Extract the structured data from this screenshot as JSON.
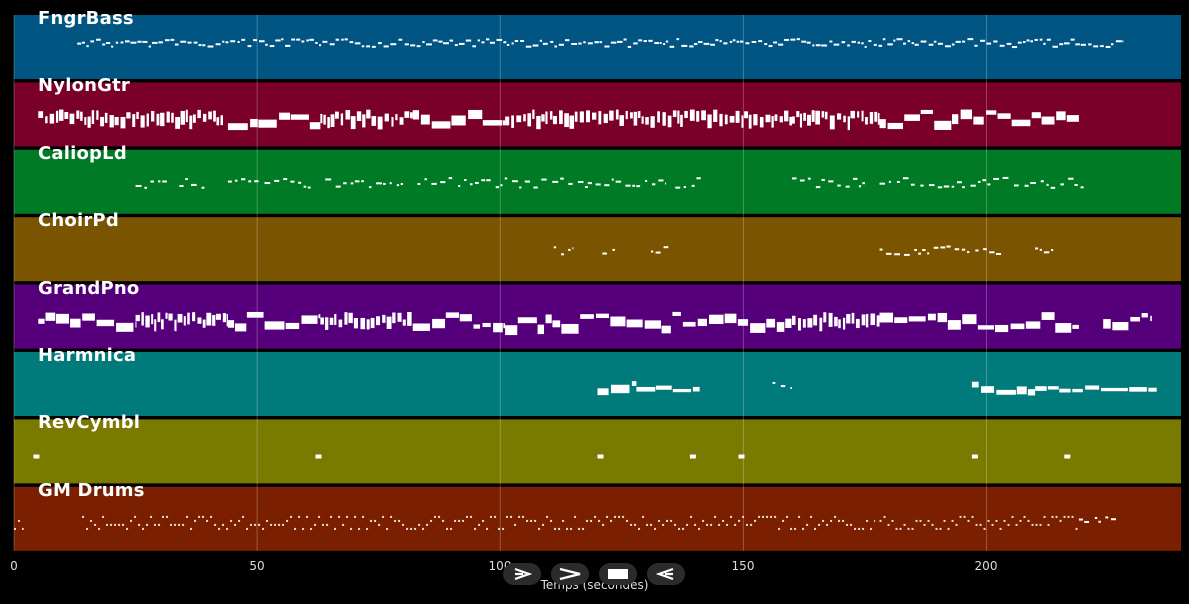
{
  "x_axis": {
    "label": "Temps (secondes)",
    "ticks": [
      "0",
      "50",
      "100",
      "150",
      "200"
    ],
    "range": [
      0,
      240
    ]
  },
  "tracks": [
    {
      "name": "FngrBass",
      "color": "#005582",
      "segments": [
        [
          13,
          228,
          "dense"
        ]
      ]
    },
    {
      "name": "NylonGtr",
      "color": "#7a0029",
      "segments": [
        [
          5,
          43,
          "chord"
        ],
        [
          44,
          63,
          "block"
        ],
        [
          63,
          82,
          "chord"
        ],
        [
          82,
          101,
          "block"
        ],
        [
          101,
          160,
          "chord"
        ],
        [
          160,
          178,
          "chord"
        ],
        [
          178,
          219,
          "block"
        ]
      ]
    },
    {
      "name": "CaliopLd",
      "color": "#007a25",
      "segments": [
        [
          25,
          32,
          "sparse"
        ],
        [
          34,
          40,
          "sparse"
        ],
        [
          44,
          61,
          "sparse"
        ],
        [
          64,
          72,
          "sparse"
        ],
        [
          73,
          80,
          "sparse"
        ],
        [
          83,
          118,
          "sparse"
        ],
        [
          118,
          134,
          "sparse"
        ],
        [
          136,
          142,
          "sparse"
        ],
        [
          160,
          175,
          "sparse"
        ],
        [
          178,
          195,
          "sparse"
        ],
        [
          195,
          220,
          "sparse"
        ]
      ]
    },
    {
      "name": "ChoirPd",
      "color": "#7a5400",
      "segments": [
        [
          111,
          115,
          "sparse"
        ],
        [
          121,
          124,
          "sparse"
        ],
        [
          131,
          135,
          "sparse"
        ],
        [
          178,
          196,
          "sparse"
        ],
        [
          196,
          203,
          "sparse"
        ],
        [
          210,
          214,
          "sparse"
        ]
      ]
    },
    {
      "name": "GrandPno",
      "color": "#55007a",
      "segments": [
        [
          5,
          25,
          "block"
        ],
        [
          25,
          44,
          "chord"
        ],
        [
          44,
          63,
          "block"
        ],
        [
          63,
          82,
          "chord"
        ],
        [
          82,
          101,
          "block"
        ],
        [
          101,
          160,
          "block"
        ],
        [
          160,
          178,
          "chord"
        ],
        [
          178,
          219,
          "block"
        ],
        [
          224,
          234,
          "block"
        ]
      ]
    },
    {
      "name": "Harmnica",
      "color": "#007a7a",
      "segments": [
        [
          120,
          128,
          "block"
        ],
        [
          128,
          141,
          "line"
        ],
        [
          156,
          160,
          "sparse"
        ],
        [
          197,
          210,
          "block"
        ],
        [
          210,
          235,
          "line"
        ]
      ]
    },
    {
      "name": "RevCymbl",
      "color": "#7a7a00",
      "segments": [
        [
          4,
          5,
          "dash"
        ],
        [
          62,
          63,
          "dash"
        ],
        [
          120,
          121,
          "dash"
        ],
        [
          139,
          140,
          "dash"
        ],
        [
          149,
          150,
          "dash"
        ],
        [
          197,
          198,
          "dash"
        ],
        [
          216,
          217,
          "dash"
        ]
      ]
    },
    {
      "name": "GM Drums",
      "color": "#7a2000",
      "segments": [
        [
          0,
          2,
          "drum"
        ],
        [
          14,
          177,
          "drum"
        ],
        [
          178,
          219,
          "drum"
        ],
        [
          219,
          227,
          "sparse"
        ]
      ]
    }
  ],
  "controls": [
    {
      "name": "play-forward-button",
      "icon": "play-outline-icon"
    },
    {
      "name": "fast-forward-button",
      "icon": "chevron-right-icon"
    },
    {
      "name": "stop-button",
      "icon": "stop-icon"
    },
    {
      "name": "rewind-button",
      "icon": "play-back-outline-icon"
    }
  ]
}
